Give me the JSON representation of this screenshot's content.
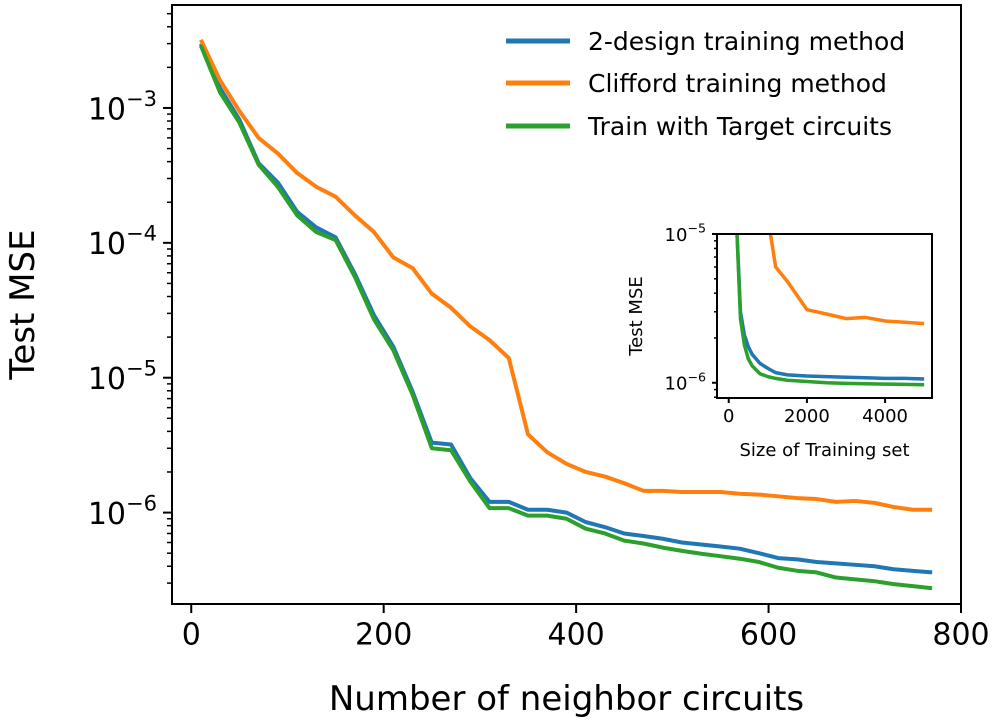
{
  "chart_data": [
    {
      "type": "line",
      "title": "",
      "xlabel": "Number of neighbor circuits",
      "ylabel": "Test MSE",
      "xscale": "linear",
      "yscale": "log",
      "xlim": [
        -20,
        800
      ],
      "ylim": [
        2.1e-07,
        0.0058
      ],
      "xticks": [
        0,
        200,
        400,
        600,
        800
      ],
      "xtick_labels": [
        "0",
        "200",
        "400",
        "600",
        "800"
      ],
      "yticks": [
        0.001,
        0.0001,
        1e-05,
        1e-06
      ],
      "ytick_labels": [
        {
          "base": "10",
          "exp": "−3"
        },
        {
          "base": "10",
          "exp": "−4"
        },
        {
          "base": "10",
          "exp": "−5"
        },
        {
          "base": "10",
          "exp": "−6"
        }
      ],
      "grid": false,
      "legend_position": "top-right",
      "x": [
        10,
        30,
        50,
        70,
        90,
        110,
        130,
        150,
        170,
        190,
        210,
        230,
        250,
        270,
        290,
        310,
        330,
        350,
        370,
        390,
        410,
        430,
        450,
        470,
        490,
        510,
        530,
        550,
        570,
        590,
        610,
        630,
        650,
        670,
        690,
        710,
        730,
        750,
        770
      ],
      "series": [
        {
          "name": "2-design training method",
          "color": "#1f77b4",
          "values": [
            0.003,
            0.0014,
            0.00082,
            0.00039,
            0.00028,
            0.00017,
            0.00013,
            0.00011,
            5.9e-05,
            2.9e-05,
            1.7e-05,
            7.9e-06,
            3.3e-06,
            3.2e-06,
            1.8e-06,
            1.2e-06,
            1.2e-06,
            1.05e-06,
            1.05e-06,
            1e-06,
            8.5e-07,
            7.8e-07,
            7e-07,
            6.7e-07,
            6.4e-07,
            6e-07,
            5.8e-07,
            5.6e-07,
            5.4e-07,
            5e-07,
            4.6e-07,
            4.5e-07,
            4.3e-07,
            4.2e-07,
            4.1e-07,
            4e-07,
            3.8e-07,
            3.7e-07,
            3.6e-07
          ]
        },
        {
          "name": "Clifford training method",
          "color": "#ff7f0e",
          "values": [
            0.0032,
            0.0016,
            0.00095,
            0.0006,
            0.00046,
            0.00033,
            0.00026,
            0.00022,
            0.00016,
            0.00012,
            7.8e-05,
            6.5e-05,
            4.2e-05,
            3.3e-05,
            2.4e-05,
            1.9e-05,
            1.4e-05,
            3.8e-06,
            2.8e-06,
            2.3e-06,
            2e-06,
            1.85e-06,
            1.65e-06,
            1.45e-06,
            1.45e-06,
            1.42e-06,
            1.42e-06,
            1.42e-06,
            1.38e-06,
            1.36e-06,
            1.32e-06,
            1.28e-06,
            1.26e-06,
            1.2e-06,
            1.22e-06,
            1.18e-06,
            1.1e-06,
            1.05e-06,
            1.05e-06
          ]
        },
        {
          "name": "Train with Target circuits",
          "color": "#2ca02c",
          "values": [
            0.0029,
            0.0013,
            0.00078,
            0.00038,
            0.00026,
            0.00016,
            0.00012,
            0.000105,
            5.6e-05,
            2.7e-05,
            1.6e-05,
            7.5e-06,
            3e-06,
            2.9e-06,
            1.7e-06,
            1.08e-06,
            1.08e-06,
            9.5e-07,
            9.5e-07,
            9e-07,
            7.6e-07,
            7e-07,
            6.2e-07,
            5.9e-07,
            5.5e-07,
            5.2e-07,
            4.95e-07,
            4.75e-07,
            4.55e-07,
            4.3e-07,
            3.9e-07,
            3.7e-07,
            3.6e-07,
            3.3e-07,
            3.2e-07,
            3.1e-07,
            2.95e-07,
            2.85e-07,
            2.75e-07
          ]
        }
      ]
    },
    {
      "type": "line",
      "title": "",
      "xlabel": "Size of Training set",
      "ylabel": "Test MSE",
      "xscale": "linear",
      "yscale": "log",
      "xlim": [
        -300,
        5200
      ],
      "ylim": [
        7.9e-07,
        1e-05
      ],
      "xticks": [
        0,
        2000,
        4000
      ],
      "xtick_labels": [
        "0",
        "2000",
        "4000"
      ],
      "yticks": [
        1e-05,
        1e-06
      ],
      "ytick_labels": [
        {
          "base": "10",
          "exp": "−5"
        },
        {
          "base": "10",
          "exp": "−6"
        }
      ],
      "grid": false,
      "legend_position": "none",
      "x": [
        200,
        300,
        400,
        500,
        600,
        800,
        1000,
        1200,
        1500,
        2000,
        2500,
        3000,
        3500,
        4000,
        4500,
        5000
      ],
      "series": [
        {
          "name": "",
          "color": "#1f77b4",
          "values": [
            1.2e-05,
            3e-06,
            2.1e-06,
            1.75e-06,
            1.55e-06,
            1.35e-06,
            1.25e-06,
            1.17e-06,
            1.13e-06,
            1.11e-06,
            1.1e-06,
            1.09e-06,
            1.08e-06,
            1.07e-06,
            1.07e-06,
            1.06e-06
          ]
        },
        {
          "name": "",
          "color": "#ff7f0e",
          "values": [
            null,
            null,
            null,
            null,
            null,
            null,
            1.3e-05,
            6e-06,
            4.8e-06,
            3.1e-06,
            2.9e-06,
            2.7e-06,
            2.75e-06,
            2.6e-06,
            2.55e-06,
            2.5e-06
          ]
        },
        {
          "name": "",
          "color": "#2ca02c",
          "values": [
            1.2e-05,
            2.7e-06,
            1.8e-06,
            1.45e-06,
            1.3e-06,
            1.15e-06,
            1.1e-06,
            1.07e-06,
            1.04e-06,
            1.02e-06,
            1e-06,
            9.9e-07,
            9.85e-07,
            9.8e-07,
            9.75e-07,
            9.7e-07
          ]
        }
      ]
    }
  ]
}
